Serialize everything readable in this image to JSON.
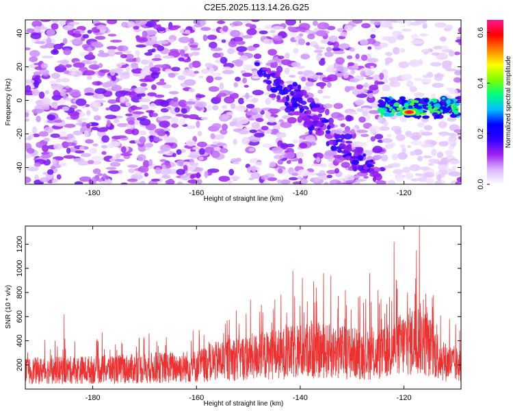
{
  "title": "C2E5.2025.113.14.26.G25",
  "chart_data": [
    {
      "type": "heatmap",
      "xlabel": "Height of straight line (km)",
      "ylabel": "Frequency (Hz)",
      "xlim": [
        -193,
        -109
      ],
      "ylim": [
        -50,
        48
      ],
      "x_ticks": [
        -180,
        -160,
        -140,
        -120
      ],
      "y_ticks": [
        -40,
        -20,
        0,
        20,
        40
      ],
      "colorbar": {
        "label": "Normalized spectral amplitude",
        "range": [
          0.0,
          0.65
        ],
        "ticks": [
          0.0,
          0.2,
          0.4,
          0.6
        ],
        "tick_labels": [
          "0.0",
          "0.2",
          "0.4",
          "0.6"
        ],
        "colors": [
          "#ffffff",
          "#d9b3ff",
          "#a020f0",
          "#3000ff",
          "#0000ff",
          "#00c0ff",
          "#00ff80",
          "#80ff00",
          "#ffff00",
          "#ff8000",
          "#ff0000",
          "#ff1493"
        ]
      },
      "background": {
        "amplitude_range": [
          0.0,
          0.15
        ],
        "clear_region_x": [
          -124,
          -110
        ]
      },
      "features": [
        {
          "name": "diagonal streak",
          "x_start": -148,
          "x_end": -126,
          "y_start": 22,
          "y_end": -45,
          "amplitude": 0.2
        },
        {
          "name": "strong band",
          "x_start": -124.5,
          "x_end": -109.5,
          "y_center": -4,
          "y_spread": 4,
          "amplitude": 0.35
        },
        {
          "name": "peak",
          "x": -119,
          "y": -7,
          "amplitude": 0.62
        }
      ]
    },
    {
      "type": "line",
      "xlabel": "Height of straight line (km)",
      "ylabel": "SNR (10 * v/v)",
      "xlim": [
        -193,
        -109
      ],
      "ylim": [
        0,
        1350
      ],
      "x_ticks": [
        -180,
        -160,
        -140,
        -120
      ],
      "y_ticks": [
        200,
        400,
        600,
        800,
        1000,
        1200
      ],
      "color": "#ee3030",
      "baseline_envelope": [
        [
          -193,
          200
        ],
        [
          -175,
          220
        ],
        [
          -160,
          250
        ],
        [
          -155,
          320
        ],
        [
          -145,
          380
        ],
        [
          -138,
          430
        ],
        [
          -130,
          400
        ],
        [
          -125,
          360
        ],
        [
          -121,
          480
        ],
        [
          -117,
          560
        ],
        [
          -112,
          300
        ],
        [
          -109,
          260
        ]
      ],
      "spikes": [
        [
          -185.5,
          620
        ],
        [
          -178.2,
          470
        ],
        [
          -170.1,
          430
        ],
        [
          -152.3,
          650
        ],
        [
          -149.6,
          740
        ],
        [
          -147.8,
          640
        ],
        [
          -145.5,
          550
        ],
        [
          -143.7,
          780
        ],
        [
          -142.3,
          470
        ],
        [
          -141.4,
          980
        ],
        [
          -139.6,
          920
        ],
        [
          -137.4,
          890
        ],
        [
          -135.5,
          960
        ],
        [
          -134.1,
          940
        ],
        [
          -131.3,
          820
        ],
        [
          -130.2,
          660
        ],
        [
          -128.5,
          770
        ],
        [
          -126.6,
          960
        ],
        [
          -125.0,
          820
        ],
        [
          -122.8,
          760
        ],
        [
          -121.9,
          1220
        ],
        [
          -119.3,
          800
        ],
        [
          -117.6,
          1150
        ],
        [
          -117.0,
          1350
        ],
        [
          -115.8,
          790
        ],
        [
          -111.2,
          580
        ]
      ]
    }
  ]
}
